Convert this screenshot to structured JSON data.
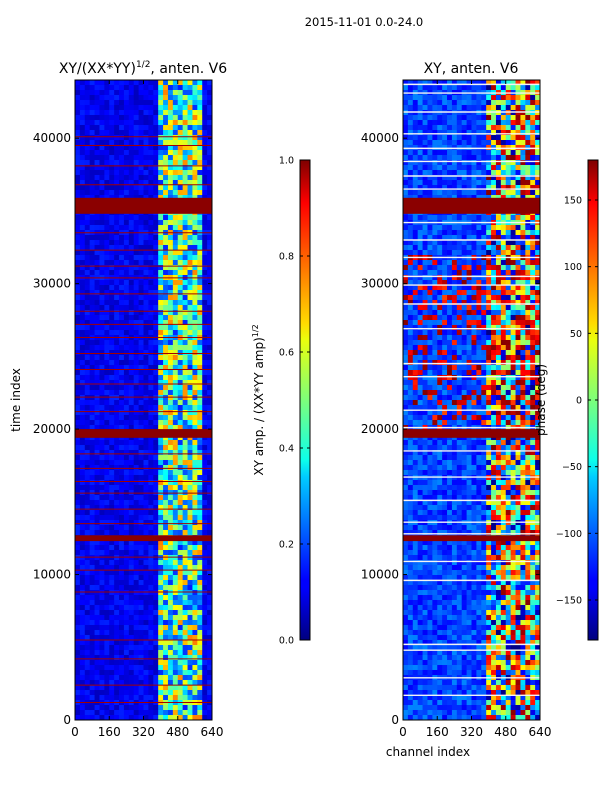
{
  "figure": {
    "suptitle": "2015-11-01 0.0-24.0",
    "xlabel": "channel index",
    "ylabel": "time index"
  },
  "chart_data": [
    {
      "type": "heatmap",
      "title": "XY/(XX*YY)",
      "title_sup": "1/2",
      "title_rest": ", anten. V6",
      "xlabel": "",
      "ylabel": "time index",
      "xlim": [
        0,
        640
      ],
      "ylim": [
        0,
        44000
      ],
      "xticks": [
        0,
        160,
        320,
        480,
        640
      ],
      "yticks": [
        0,
        10000,
        20000,
        30000,
        40000
      ],
      "colorbar": {
        "label": "XY amp. / (XX*YY amp)",
        "label_sup": "1/2",
        "range": [
          0.0,
          1.0
        ],
        "ticks": [
          "0.0",
          "0.2",
          "0.4",
          "0.6",
          "0.8",
          "1.0"
        ],
        "tick_values": [
          0.0,
          0.2,
          0.4,
          0.6,
          0.8,
          1.0
        ]
      },
      "colormap": "jet",
      "strong_feature_channels": [
        [
          400,
          600
        ]
      ],
      "saturated_time_bands": [
        [
          12300,
          12700
        ],
        [
          19400,
          20000
        ],
        [
          34800,
          35900
        ]
      ],
      "scattered_line_times": [
        1200,
        2400,
        4200,
        5500,
        8800,
        10300,
        11200,
        13500,
        14500,
        15600,
        16400,
        17300,
        18300,
        21200,
        22200,
        23100,
        24100,
        25200,
        26300,
        27200,
        28100,
        29300,
        30400,
        31200,
        32300,
        33500,
        36800,
        38100,
        39500,
        40100
      ]
    },
    {
      "type": "heatmap",
      "title": "XY, anten. V6",
      "xlabel": "channel index",
      "ylabel": "",
      "xlim": [
        0,
        640
      ],
      "ylim": [
        0,
        44000
      ],
      "xticks": [
        0,
        160,
        320,
        480,
        640
      ],
      "yticks": [
        0,
        10000,
        20000,
        30000,
        40000
      ],
      "colorbar": {
        "label": "phase (deg)",
        "range": [
          -180,
          180
        ],
        "ticks": [
          "150",
          "100",
          "50",
          "0",
          "−50",
          "−100",
          "−150"
        ],
        "tick_values": [
          150,
          100,
          50,
          0,
          -50,
          -100,
          -150
        ]
      },
      "colormap": "jet",
      "strong_feature_channels": [
        [
          400,
          640
        ]
      ],
      "saturated_time_bands": [
        [
          12300,
          12700
        ],
        [
          19400,
          20000
        ],
        [
          34800,
          35900
        ]
      ],
      "white_line_times": [
        1700,
        2900,
        4800,
        5200,
        9600,
        10900,
        12800,
        13600,
        15100,
        16700,
        18500,
        20100,
        21300,
        23600,
        24500,
        26900,
        28600,
        29900,
        30500,
        31800,
        33000,
        34200,
        36500,
        37400,
        38400,
        39300,
        40300,
        41800,
        43100,
        43700
      ]
    }
  ]
}
